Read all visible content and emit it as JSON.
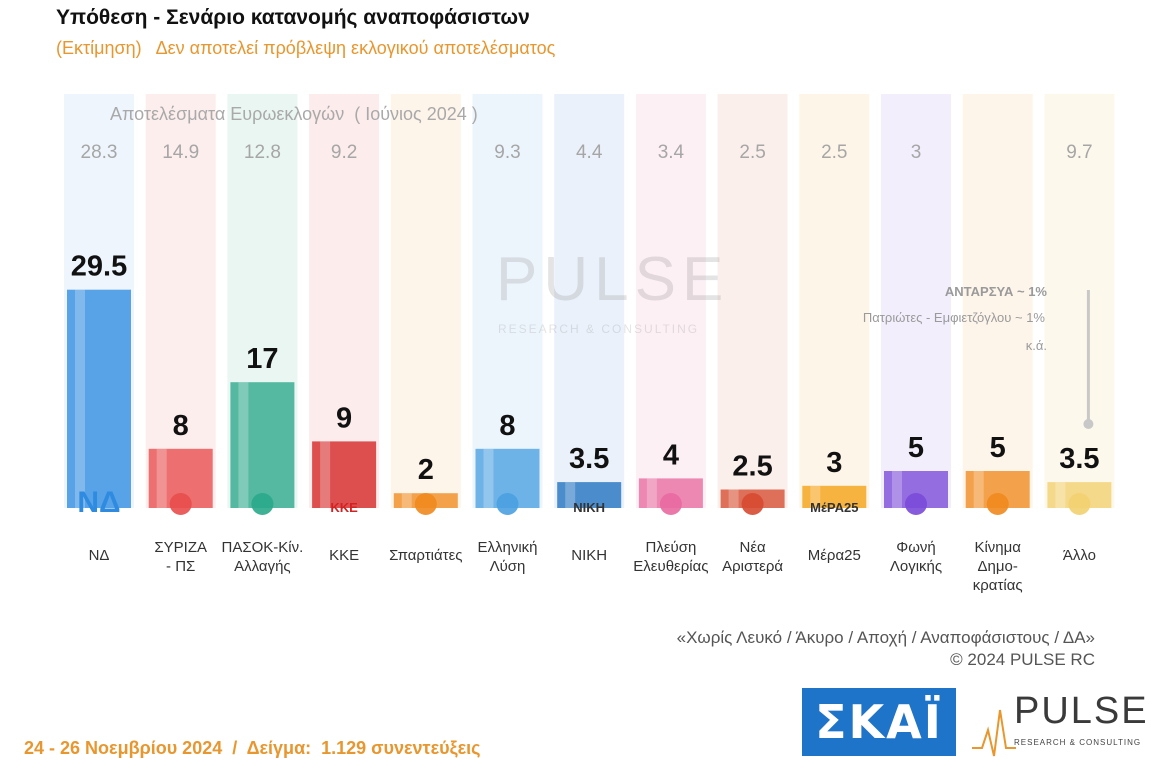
{
  "header": {
    "title": "Υπόθεση - Σενάριο κατανομής αναποφάσιστων",
    "subtitle": "(Εκτίμηση)   Δεν αποτελεί πρόβλεψη εκλογικού αποτελέσματος"
  },
  "chart_data": {
    "type": "bar",
    "previous_results_title": "Αποτελέσματα Ευρωεκλογών  ( Ιούνιος 2024 )",
    "categories": [
      {
        "lines": [
          "ΝΔ"
        ],
        "logo_text": "ΝΔ"
      },
      {
        "lines": [
          "ΣΥΡΙΖΑ",
          "- ΠΣ"
        ],
        "logo_text": ""
      },
      {
        "lines": [
          "ΠΑΣΟΚ-Κίν.",
          "Αλλαγής"
        ],
        "logo_text": ""
      },
      {
        "lines": [
          "ΚΚΕ"
        ],
        "logo_text": "ΚΚΕ"
      },
      {
        "lines": [
          "Σπαρτιάτες"
        ],
        "logo_text": ""
      },
      {
        "lines": [
          "Ελληνική",
          "Λύση"
        ],
        "logo_text": ""
      },
      {
        "lines": [
          "ΝΙΚΗ"
        ],
        "logo_text": "ΝΙΚΗ"
      },
      {
        "lines": [
          "Πλεύση",
          "Ελευθερίας"
        ],
        "logo_text": ""
      },
      {
        "lines": [
          "Νέα",
          "Αριστερά"
        ],
        "logo_text": ""
      },
      {
        "lines": [
          "Μέρα25"
        ],
        "logo_text": "ΜέΡΑ25"
      },
      {
        "lines": [
          "Φωνή",
          "Λογικής"
        ],
        "logo_text": ""
      },
      {
        "lines": [
          "Κίνημα",
          "Δημο-",
          "κρατίας"
        ],
        "logo_text": ""
      },
      {
        "lines": [
          "Άλλο"
        ],
        "logo_text": ""
      }
    ],
    "series": [
      {
        "values": [
          29.5,
          8,
          17,
          9,
          2,
          8,
          3.5,
          4,
          2.5,
          3,
          5,
          5,
          3.5
        ],
        "labels": [
          "29.5",
          "8",
          "17",
          "9",
          "2",
          "8",
          "3.5",
          "4",
          "2.5",
          "3",
          "5",
          "5",
          "3.5"
        ]
      },
      {
        "values": [
          28.3,
          14.9,
          12.8,
          9.2,
          null,
          9.3,
          4.4,
          3.4,
          2.5,
          2.5,
          3,
          null,
          9.7
        ],
        "labels": [
          "28.3",
          "14.9",
          "12.8",
          "9.2",
          "",
          "9.3",
          "4.4",
          "3.4",
          "2.5",
          "2.5",
          "3",
          "",
          "9.7"
        ]
      }
    ],
    "colors": [
      "#2e8be0",
      "#e84c4c",
      "#2aa88a",
      "#d42222",
      "#f08a1e",
      "#4aa0e0",
      "#1e6fc0",
      "#e86aa0",
      "#d64a30",
      "#f5a010",
      "#7a4ad8",
      "#f08a1e",
      "#f2d070"
    ],
    "column_bg": [
      "#eef5fc",
      "#fdeeee",
      "#eaf6f2",
      "#fcecec",
      "#fdf4ea",
      "#edf5fc",
      "#eaf1fa",
      "#fcf0f5",
      "#fbefec",
      "#fdf6e8",
      "#f2eefc",
      "#fdf4ea",
      "#fdf8ec"
    ],
    "ylim": [
      0,
      30
    ]
  },
  "annotations": {
    "antarsya": "ΑΝΤΑΡΣΥΑ ~ 1%",
    "patriotes": "Πατριώτες - Εμφιετζόγλου ~ 1%",
    "ka": "κ.ά."
  },
  "footer": {
    "note": "«Χωρίς Λευκό / Άκυρο / Αποχή / Αναποφάσιστους / ΔΑ»",
    "copyright": "©  2024  PULSE RC",
    "survey": "24 - 26 Νοεμβρίου 2024  /  Δείγμα:  1.129 συνεντεύξεις",
    "skai_logo": "ΣΚΑΪ",
    "pulse_logo": "PULSE",
    "pulse_logo_sub": "RESEARCH & CONSULTING",
    "watermark": "PULSE",
    "watermark_sub": "RESEARCH & CONSULTING"
  }
}
